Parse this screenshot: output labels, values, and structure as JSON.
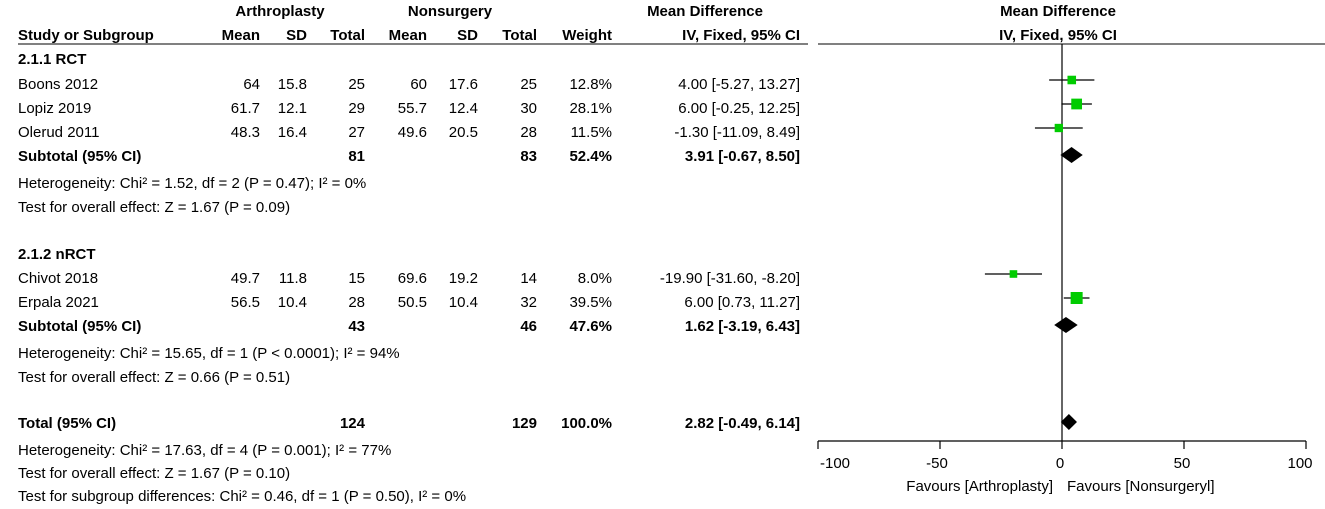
{
  "headers": {
    "group1": "Arthroplasty",
    "group2": "Nonsurgery",
    "md_left": "Mean Difference",
    "md_right": "Mean Difference",
    "study": "Study or Subgroup",
    "mean": "Mean",
    "sd": "SD",
    "total": "Total",
    "weight": "Weight",
    "ci_left": "IV, Fixed, 95% CI",
    "ci_right": "IV, Fixed, 95% CI"
  },
  "subgroups": [
    {
      "title": "2.1.1 RCT",
      "studies": [
        {
          "name": "Boons 2012",
          "m1": "64",
          "sd1": "15.8",
          "n1": "25",
          "m2": "60",
          "sd2": "17.6",
          "n2": "25",
          "weight": "12.8%",
          "ci": "4.00 [-5.27, 13.27]",
          "md": 4.0,
          "lo": -5.27,
          "hi": 13.27,
          "w": 12.8
        },
        {
          "name": "Lopiz 2019",
          "m1": "61.7",
          "sd1": "12.1",
          "n1": "29",
          "m2": "55.7",
          "sd2": "12.4",
          "n2": "30",
          "weight": "28.1%",
          "ci": "6.00 [-0.25, 12.25]",
          "md": 6.0,
          "lo": -0.25,
          "hi": 12.25,
          "w": 28.1
        },
        {
          "name": "Olerud 2011",
          "m1": "48.3",
          "sd1": "16.4",
          "n1": "27",
          "m2": "49.6",
          "sd2": "20.5",
          "n2": "28",
          "weight": "11.5%",
          "ci": "-1.30 [-11.09, 8.49]",
          "md": -1.3,
          "lo": -11.09,
          "hi": 8.49,
          "w": 11.5
        }
      ],
      "subtotal": {
        "label": "Subtotal (95% CI)",
        "n1": "81",
        "n2": "83",
        "weight": "52.4%",
        "ci": "3.91 [-0.67, 8.50]",
        "md": 3.91,
        "lo": -0.67,
        "hi": 8.5
      },
      "heterogeneity": "Heterogeneity: Chi² = 1.52, df = 2 (P = 0.47); I² = 0%",
      "overall": "Test for overall effect: Z = 1.67 (P = 0.09)"
    },
    {
      "title": "2.1.2 nRCT",
      "studies": [
        {
          "name": "Chivot 2018",
          "m1": "49.7",
          "sd1": "11.8",
          "n1": "15",
          "m2": "69.6",
          "sd2": "19.2",
          "n2": "14",
          "weight": "8.0%",
          "ci": "-19.90 [-31.60, -8.20]",
          "md": -19.9,
          "lo": -31.6,
          "hi": -8.2,
          "w": 8.0
        },
        {
          "name": "Erpala 2021",
          "m1": "56.5",
          "sd1": "10.4",
          "n1": "28",
          "m2": "50.5",
          "sd2": "10.4",
          "n2": "32",
          "weight": "39.5%",
          "ci": "6.00 [0.73, 11.27]",
          "md": 6.0,
          "lo": 0.73,
          "hi": 11.27,
          "w": 39.5
        }
      ],
      "subtotal": {
        "label": "Subtotal (95% CI)",
        "n1": "43",
        "n2": "46",
        "weight": "47.6%",
        "ci": "1.62 [-3.19, 6.43]",
        "md": 1.62,
        "lo": -3.19,
        "hi": 6.43
      },
      "heterogeneity": "Heterogeneity: Chi² = 15.65, df = 1 (P < 0.0001); I² = 94%",
      "overall": "Test for overall effect: Z = 0.66 (P = 0.51)"
    }
  ],
  "total": {
    "label": "Total (95% CI)",
    "n1": "124",
    "n2": "129",
    "weight": "100.0%",
    "ci": "2.82 [-0.49, 6.14]",
    "md": 2.82,
    "lo": -0.49,
    "hi": 6.14
  },
  "total_heterogeneity": "Heterogeneity: Chi² = 17.63, df = 4 (P = 0.001); I² = 77%",
  "total_overall": "Test for overall effect: Z = 1.67 (P = 0.10)",
  "subgroup_diff": "Test for subgroup differences: Chi² = 0.46, df = 1 (P = 0.50), I² = 0%",
  "chart_data": {
    "type": "forest",
    "title": "Mean Difference",
    "subtitle": "IV, Fixed, 95% CI",
    "xlim": [
      -100,
      100
    ],
    "xticks": [
      -100,
      -50,
      0,
      50,
      100
    ],
    "xtick_labels": [
      "-100",
      "-50",
      "0",
      "50",
      "100"
    ],
    "favours_left": "Favours [Arthroplasty]",
    "favours_right": "Favours [Nonsurgeryl]",
    "studies": [
      "Boons 2012",
      "Lopiz 2019",
      "Olerud 2011",
      "Chivot 2018",
      "Erpala 2021"
    ],
    "md": [
      4.0,
      6.0,
      -1.3,
      -19.9,
      6.0
    ],
    "ci_low": [
      -5.27,
      -0.25,
      -11.09,
      -31.6,
      0.73
    ],
    "ci_high": [
      13.27,
      12.25,
      8.49,
      -8.2,
      11.27
    ],
    "weights": [
      12.8,
      28.1,
      11.5,
      8.0,
      39.5
    ],
    "pooled": [
      {
        "name": "Subtotal 2.1.1 RCT",
        "md": 3.91,
        "lo": -0.67,
        "hi": 8.5
      },
      {
        "name": "Subtotal 2.1.2 nRCT",
        "md": 1.62,
        "lo": -3.19,
        "hi": 6.43
      },
      {
        "name": "Total",
        "md": 2.82,
        "lo": -0.49,
        "hi": 6.14
      }
    ],
    "colors": {
      "square": "#00cc00",
      "diamond": "#000000",
      "line": "#000000"
    }
  }
}
